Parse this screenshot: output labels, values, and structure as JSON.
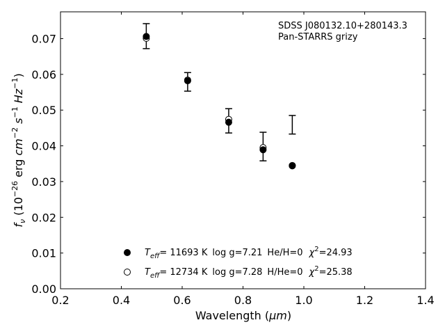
{
  "chart_data": {
    "type": "scatter",
    "xlabel_main": "Wavelength (",
    "xlabel_unit": "μm",
    "xlabel_close": ")",
    "ylabel": {
      "f": "f",
      "sub": "ν",
      "open": " (10",
      "exp1": "−26",
      "mid": " erg ",
      "cm": "cm",
      "exp2": "−2",
      "s": " s",
      "exp3": "−1",
      "hz": " Hz",
      "exp4": "−1",
      "close": ")"
    },
    "xlim": [
      0.2,
      1.4
    ],
    "ylim": [
      0.0,
      0.0775
    ],
    "xticks": [
      "0.2",
      "0.4",
      "0.6",
      "0.8",
      "1.0",
      "1.2",
      "1.4"
    ],
    "xtick_values": [
      0.2,
      0.4,
      0.6,
      0.8,
      1.0,
      1.2,
      1.4
    ],
    "yticks": [
      "0.00",
      "0.01",
      "0.02",
      "0.03",
      "0.04",
      "0.05",
      "0.06",
      "0.07"
    ],
    "ytick_values": [
      0.0,
      0.01,
      0.02,
      0.03,
      0.04,
      0.05,
      0.06,
      0.07
    ],
    "annotation": [
      "SDSS J080132.10+280143.3",
      "Pan-STARRS grizy"
    ],
    "observed": {
      "x": [
        0.482,
        0.618,
        0.753,
        0.866,
        0.962
      ],
      "y": [
        0.0707,
        0.0579,
        0.047,
        0.0398,
        0.0459
      ],
      "yerr": [
        0.0035,
        0.0026,
        0.0034,
        0.004,
        0.0026
      ]
    },
    "series": [
      {
        "marker": "filled",
        "x": [
          0.482,
          0.618,
          0.753,
          0.866,
          0.962
        ],
        "y": [
          0.0706,
          0.0582,
          0.0466,
          0.0389,
          0.0344
        ],
        "legend": {
          "T": "T",
          "Tsub": "eff",
          "teff": "= 11693 K",
          "logg": "log g=7.21",
          "comp": "He/H=0",
          "chi": "χ",
          "chiexp": "2",
          "chival": "=24.93"
        }
      },
      {
        "marker": "open",
        "x": [
          0.482,
          0.618,
          0.753,
          0.866,
          0.962
        ],
        "y": [
          0.0701,
          0.0584,
          0.0474,
          0.0395,
          0.0345
        ],
        "legend": {
          "T": "T",
          "Tsub": "eff",
          "teff": "= 12734 K",
          "logg": "log g=7.28",
          "comp": "H/He=0",
          "chi": "χ",
          "chiexp": "2",
          "chival": "=25.38"
        }
      }
    ],
    "legend_position": "lower-center"
  }
}
